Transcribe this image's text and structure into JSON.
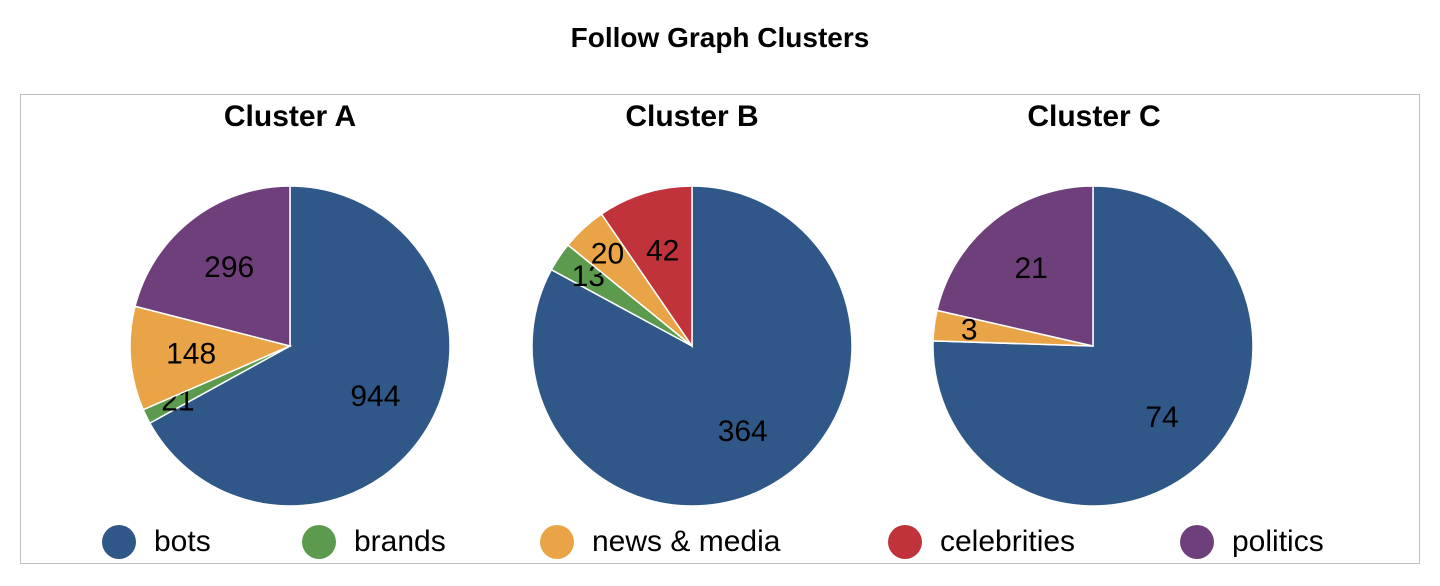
{
  "title": "Follow Graph Clusters",
  "categories": [
    "bots",
    "brands",
    "news & media",
    "celebrities",
    "politics"
  ],
  "colors": {
    "bots": "#2f5888",
    "brands": "#5c9a4e",
    "news & media": "#e8a446",
    "celebrities": "#c0333a",
    "politics": "#6e3f7b"
  },
  "legend": {
    "position": "bottom",
    "items": [
      "bots",
      "brands",
      "news & media",
      "celebrities",
      "politics"
    ]
  },
  "chart_data": [
    {
      "type": "pie",
      "title": "Cluster A",
      "slices": [
        {
          "label": "bots",
          "value": 944
        },
        {
          "label": "brands",
          "value": 21
        },
        {
          "label": "news & media",
          "value": 148
        },
        {
          "label": "politics",
          "value": 296
        }
      ]
    },
    {
      "type": "pie",
      "title": "Cluster B",
      "slices": [
        {
          "label": "bots",
          "value": 364
        },
        {
          "label": "brands",
          "value": 13
        },
        {
          "label": "news & media",
          "value": 20
        },
        {
          "label": "celebrities",
          "value": 42
        }
      ]
    },
    {
      "type": "pie",
      "title": "Cluster C",
      "slices": [
        {
          "label": "bots",
          "value": 74
        },
        {
          "label": "news & media",
          "value": 3
        },
        {
          "label": "politics",
          "value": 21
        }
      ]
    }
  ]
}
